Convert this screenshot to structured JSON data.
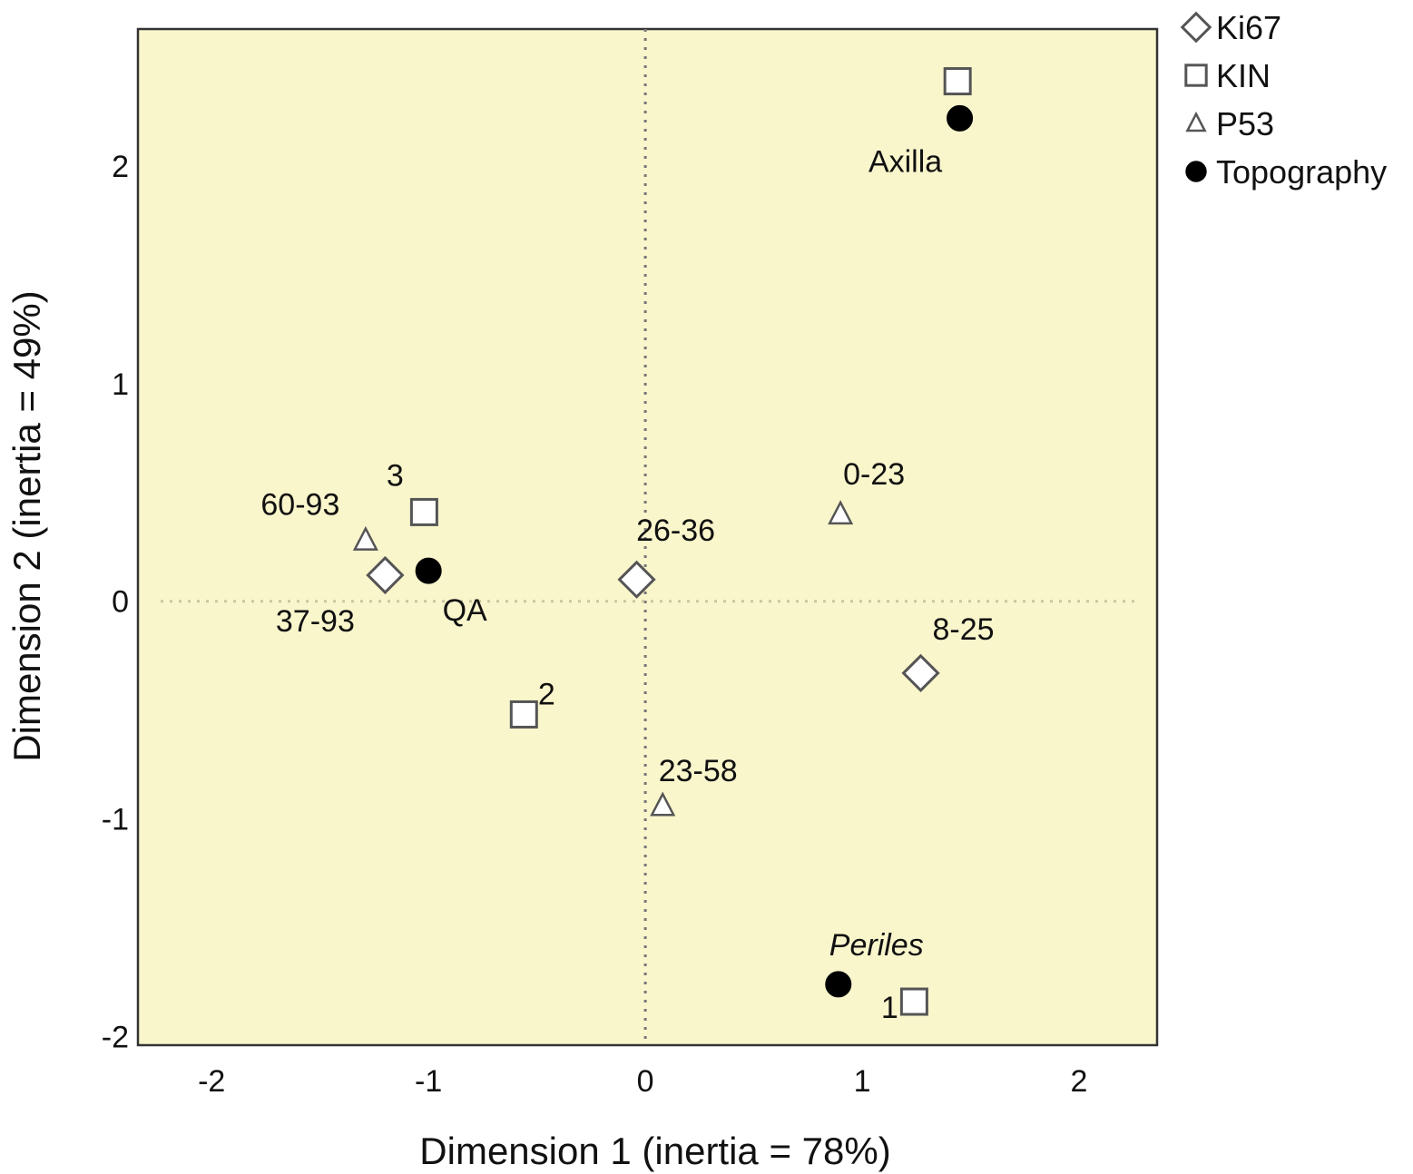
{
  "chart_data": {
    "type": "scatter",
    "title": "",
    "xlabel": "Dimension 1 (inertia = 78%)",
    "ylabel": "Dimension 2 (inertia = 49%)",
    "xlim": [
      -2.34,
      2.36
    ],
    "ylim": [
      -2.04,
      2.63
    ],
    "xticks": [
      -2,
      -1,
      0,
      1,
      2
    ],
    "yticks": [
      -2,
      -1,
      0,
      1,
      2
    ],
    "grid": false,
    "reference_lines": {
      "x": 0,
      "y": 0,
      "style": "dotted"
    },
    "plot_background": "#f9f6cc",
    "legend_position": "outside-top-right",
    "series": [
      {
        "name": "Ki67",
        "marker": "diamond",
        "color": "#ffffff",
        "stroke": "#555555",
        "points": [
          {
            "x": -1.2,
            "y": 0.12,
            "label": "37-93"
          },
          {
            "x": -0.04,
            "y": 0.1,
            "label": "26-36"
          },
          {
            "x": 1.27,
            "y": -0.33,
            "label": "8-25"
          }
        ]
      },
      {
        "name": "KIN",
        "marker": "square",
        "color": "#ffffff",
        "stroke": "#555555",
        "points": [
          {
            "x": -1.02,
            "y": 0.41,
            "label": "3"
          },
          {
            "x": -0.56,
            "y": -0.52,
            "label": "2"
          },
          {
            "x": 1.24,
            "y": -1.84,
            "label": "1"
          },
          {
            "x": 1.44,
            "y": 2.39,
            "label": ""
          }
        ]
      },
      {
        "name": "P53",
        "marker": "triangle",
        "color": "#ffffff",
        "stroke": "#555555",
        "points": [
          {
            "x": -1.29,
            "y": 0.28,
            "label": "60-93"
          },
          {
            "x": 0.9,
            "y": 0.4,
            "label": "0-23"
          },
          {
            "x": 0.08,
            "y": -0.94,
            "label": "23-58"
          }
        ]
      },
      {
        "name": "Topography",
        "marker": "circle",
        "color": "#000000",
        "stroke": "#000000",
        "points": [
          {
            "x": 1.45,
            "y": 2.22,
            "label": "Axilla"
          },
          {
            "x": -1.0,
            "y": 0.14,
            "label": "QA"
          },
          {
            "x": 0.89,
            "y": -1.76,
            "label": "Periles",
            "italic": true
          }
        ]
      }
    ]
  }
}
